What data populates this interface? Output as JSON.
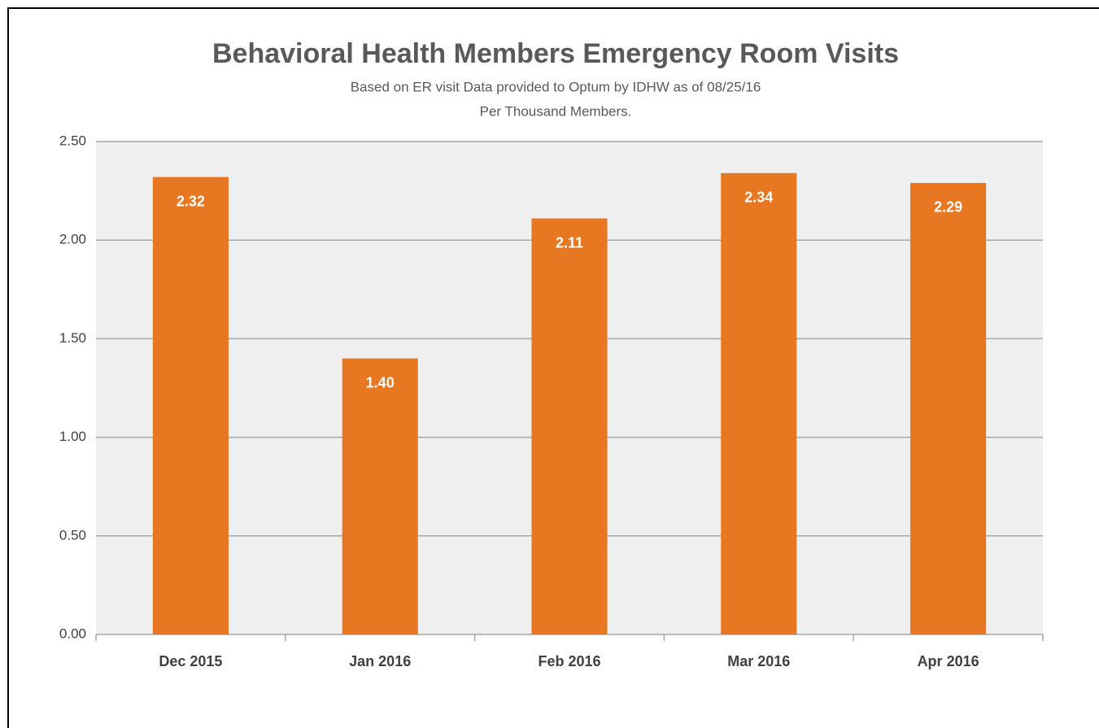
{
  "chart_data": {
    "type": "bar",
    "title": "Behavioral Health Members Emergency Room Visits",
    "subtitle": [
      "Based on ER visit Data provided to Optum by IDHW as of 08/25/16",
      "Per Thousand Members."
    ],
    "categories": [
      "Dec 2015",
      "Jan 2016",
      "Feb 2016",
      "Mar 2016",
      "Apr 2016"
    ],
    "values": [
      2.32,
      1.4,
      2.11,
      2.34,
      2.29
    ],
    "value_labels": [
      "2.32",
      "1.40",
      "2.11",
      "2.34",
      "2.29"
    ],
    "color": "#e87722",
    "ylim": [
      0,
      2.5
    ],
    "yticks": [
      {
        "value": 0,
        "label": "0.00"
      },
      {
        "value": 0.5,
        "label": "0.50"
      },
      {
        "value": 1,
        "label": "1.00"
      },
      {
        "value": 1.5,
        "label": "1.50"
      },
      {
        "value": 2,
        "label": "2.00"
      },
      {
        "value": 2.5,
        "label": "2.50"
      }
    ],
    "grid": true
  }
}
